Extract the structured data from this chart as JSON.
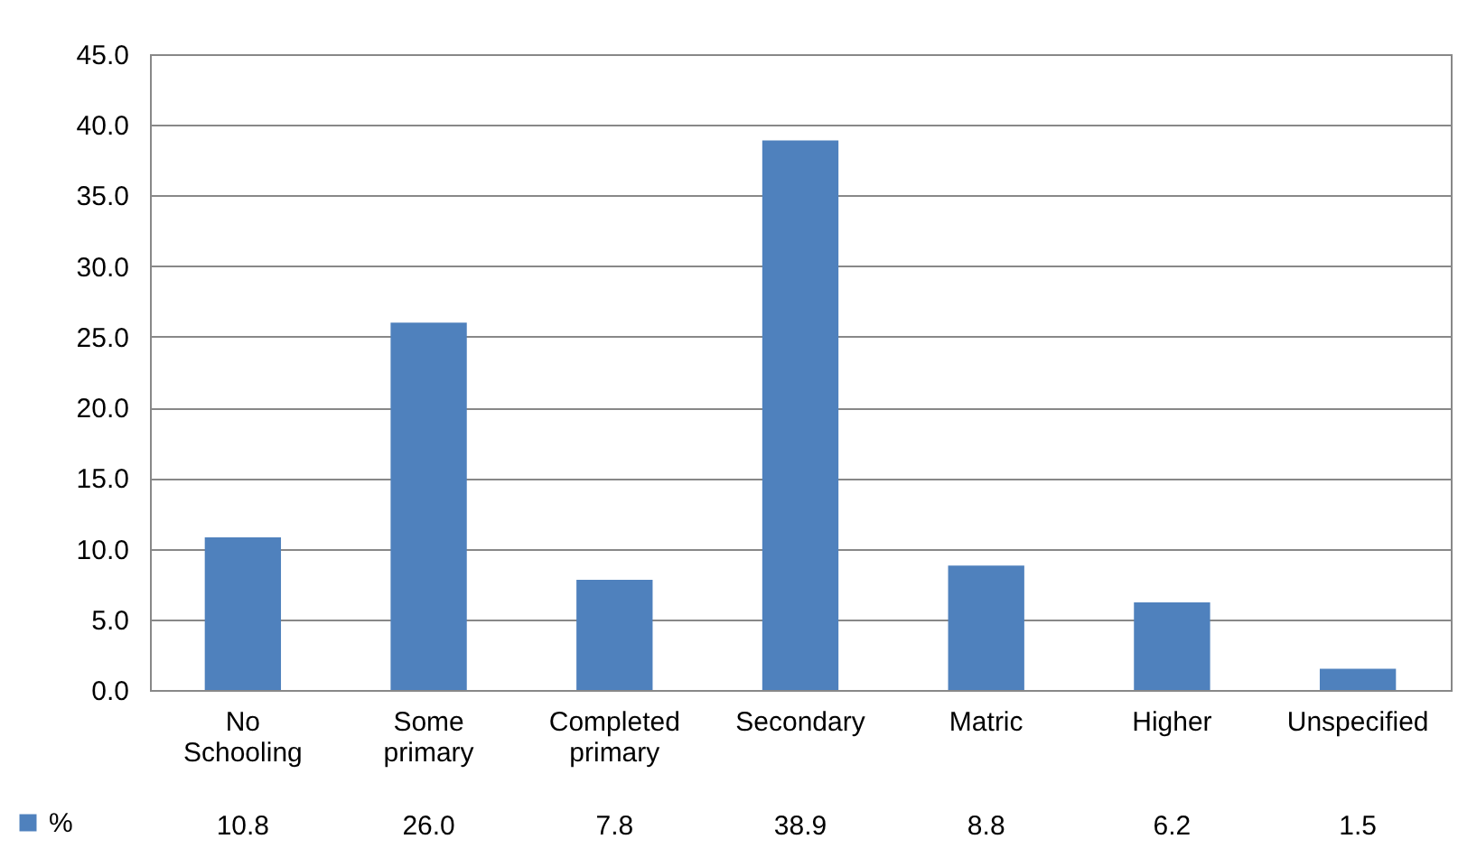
{
  "chart_data": {
    "type": "bar",
    "categories": [
      "No Schooling",
      "Some primary",
      "Completed primary",
      "Secondary",
      "Matric",
      "Higher",
      "Unspecified"
    ],
    "series": [
      {
        "name": "%",
        "color": "#4f81bd",
        "values": [
          10.8,
          26.0,
          7.8,
          38.9,
          8.8,
          6.2,
          1.5
        ],
        "value_labels": [
          "10.8",
          "26.0",
          "7.8",
          "38.9",
          "8.8",
          "6.2",
          "1.5"
        ]
      }
    ],
    "ylim": [
      0,
      45
    ],
    "yticks": [
      {
        "value": 0,
        "label": "0.0"
      },
      {
        "value": 5,
        "label": "5.0"
      },
      {
        "value": 10,
        "label": "10.0"
      },
      {
        "value": 15,
        "label": "15.0"
      },
      {
        "value": 20,
        "label": "20.0"
      },
      {
        "value": 25,
        "label": "25.0"
      },
      {
        "value": 30,
        "label": "30.0"
      },
      {
        "value": 35,
        "label": "35.0"
      },
      {
        "value": 40,
        "label": "40.0"
      },
      {
        "value": 45,
        "label": "45.0"
      }
    ],
    "grid": "y",
    "legend": "bottom left"
  }
}
